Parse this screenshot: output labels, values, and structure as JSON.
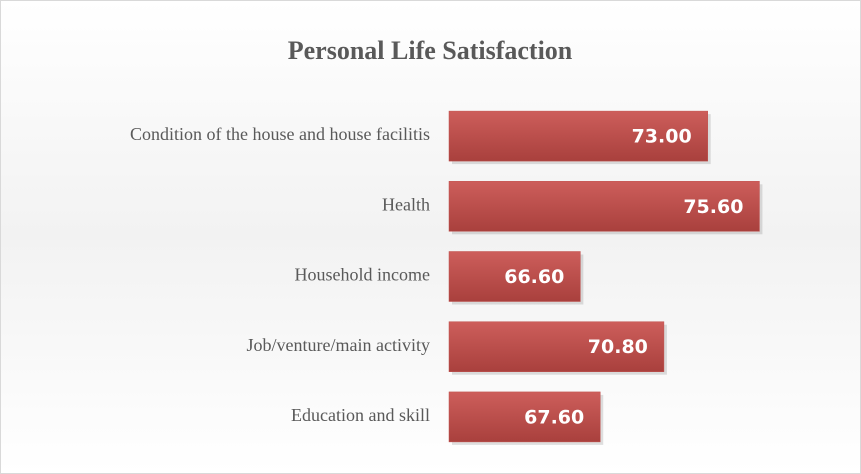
{
  "chart_data": {
    "type": "barh",
    "title": "Personal Life Satisfaction",
    "categories": [
      "Condition of the house and house facilitis",
      "Health",
      "Household income",
      "Job/venture/main activity",
      "Education and skill"
    ],
    "values": [
      73,
      75.6,
      66.6,
      70.8,
      67.6
    ],
    "value_labels": [
      "73.00",
      "75.60",
      "66.60",
      "70.80",
      "67.60"
    ],
    "color": "#c0504d",
    "xlim": [
      60,
      80
    ]
  }
}
